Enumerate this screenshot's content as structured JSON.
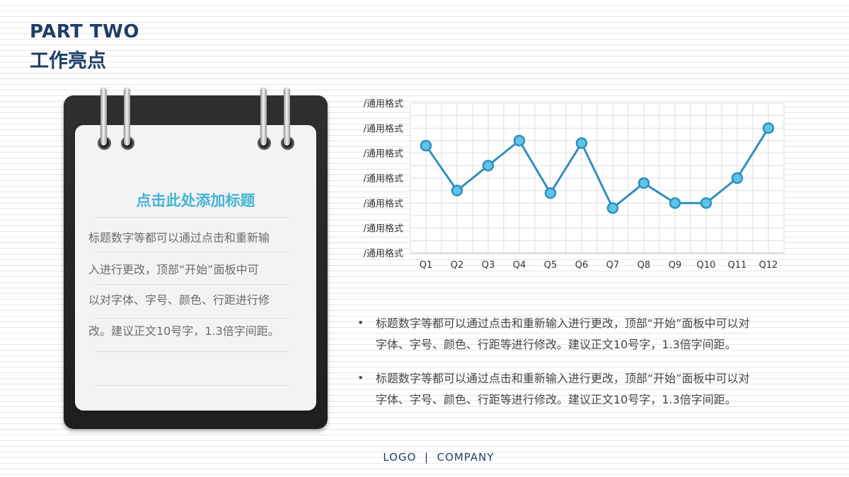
{
  "header": {
    "title": "PART TWO",
    "subtitle": "工作亮点"
  },
  "card": {
    "title": "点击此处添加标题",
    "lines": [
      "标题数字等都可以通过点击和重新输",
      "入进行更改，顶部“开始”面板中可",
      "以对字体、字号、颜色、行距进行修",
      "改。建议正文10号字，1.3倍字间距。"
    ]
  },
  "chart_data": {
    "type": "line",
    "categories": [
      "Q1",
      "Q2",
      "Q3",
      "Q4",
      "Q5",
      "Q6",
      "Q7",
      "Q8",
      "Q9",
      "Q10",
      "Q11",
      "Q12"
    ],
    "series": [
      {
        "values": [
          4.3,
          2.5,
          3.5,
          4.5,
          2.4,
          4.4,
          1.8,
          2.8,
          2.0,
          2.0,
          3.0,
          5.0
        ]
      }
    ],
    "ytick_labels": [
      "/通用格式",
      "/通用格式",
      "/通用格式",
      "/通用格式",
      "/通用格式",
      "/通用格式",
      "/通用格式"
    ],
    "ylim": [
      0,
      6
    ],
    "grid": true,
    "color": "#2f8fbf"
  },
  "bullets": [
    {
      "symbol": "•",
      "line1": "标题数字等都可以通过点击和重新输入进行更改，顶部“开始”面板中可以对",
      "line2": "字体、字号、颜色、行距等进行修改。建议正文10号字，1.3倍字间距。"
    },
    {
      "symbol": "•",
      "line1": "标题数字等都可以通过点击和重新输入进行更改，顶部“开始”面板中可以对",
      "line2": "字体、字号、颜色、行距等进行修改。建议正文10号字，1.3倍字间距。"
    }
  ],
  "footer": {
    "text": "LOGO  |  COMPANY"
  }
}
